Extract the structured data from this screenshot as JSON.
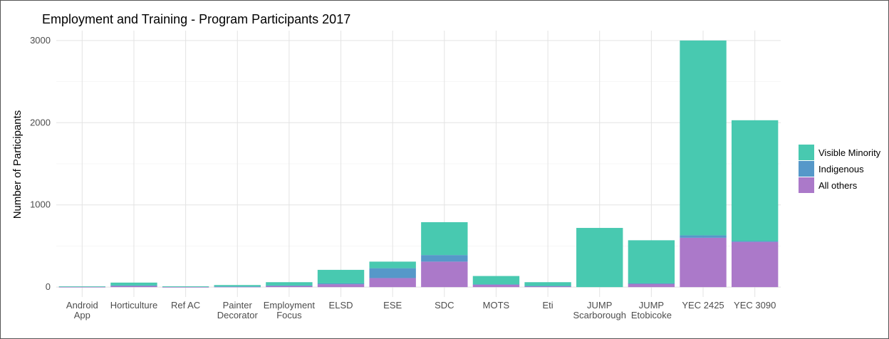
{
  "chart_data": {
    "type": "bar",
    "stacked": true,
    "title": "Employment and Training - Program Participants 2017",
    "xlabel": "",
    "ylabel": "Number of Participants",
    "ylim": [
      -120,
      3120
    ],
    "yticks": [
      0,
      1000,
      2000,
      3000
    ],
    "grid": true,
    "legend_position": "right",
    "categories": [
      [
        "Android",
        "App"
      ],
      [
        "Horticulture"
      ],
      [
        "Ref AC"
      ],
      [
        "Painter",
        "Decorator"
      ],
      [
        "Employment",
        "Focus"
      ],
      [
        "ELSD"
      ],
      [
        "ESE"
      ],
      [
        "SDC"
      ],
      [
        "MOTS"
      ],
      [
        "Eti"
      ],
      [
        "JUMP",
        "Scarborough"
      ],
      [
        "JUMP",
        "Etobicoke"
      ],
      [
        "YEC 2425"
      ],
      [
        "YEC 3090"
      ]
    ],
    "series": [
      {
        "name": "All others",
        "color": "#ab79c9",
        "values": [
          3,
          15,
          2,
          5,
          15,
          35,
          110,
          310,
          30,
          10,
          0,
          40,
          600,
          550
        ]
      },
      {
        "name": "Indigenous",
        "color": "#5698c9",
        "values": [
          0,
          5,
          0,
          3,
          5,
          10,
          120,
          80,
          5,
          5,
          0,
          5,
          30,
          10
        ]
      },
      {
        "name": "Visible Minority",
        "color": "#48c9b0",
        "values": [
          7,
          35,
          8,
          17,
          40,
          165,
          80,
          400,
          100,
          45,
          720,
          525,
          2370,
          1470
        ]
      }
    ],
    "legend_order": [
      "Visible Minority",
      "Indigenous",
      "All others"
    ]
  }
}
